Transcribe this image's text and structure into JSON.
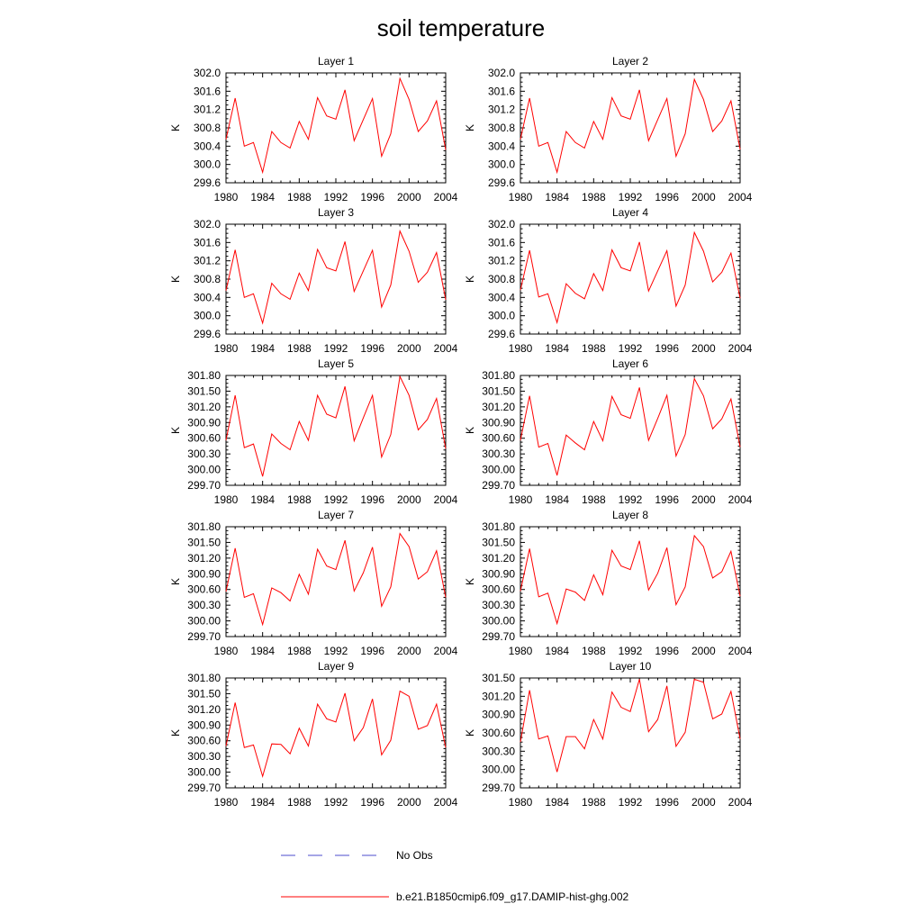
{
  "title": "soil temperature",
  "legend": {
    "position": "bottom",
    "entries": [
      {
        "label": "No Obs",
        "color": "#4d4dcc",
        "style": "dashed"
      },
      {
        "label": "b.e21.B1850cmip6.f09_g17.DAMIP-hist-ghg.002",
        "color": "#ff0000",
        "style": "solid"
      }
    ]
  },
  "chart_data": [
    {
      "type": "line",
      "title": "Layer 1",
      "ylabel": "K",
      "xlim": [
        1980,
        2004
      ],
      "ylim": [
        299.6,
        302.0
      ],
      "xticks": [
        "1980",
        "1984",
        "1988",
        "1992",
        "1996",
        "2000",
        "2004"
      ],
      "yticks": [
        "299.6",
        "300.0",
        "300.4",
        "300.8",
        "301.2",
        "301.6",
        "302.0"
      ],
      "x": [
        1980,
        1981,
        1982,
        1983,
        1984,
        1985,
        1986,
        1987,
        1988,
        1989,
        1990,
        1991,
        1992,
        1993,
        1994,
        1995,
        1996,
        1997,
        1998,
        1999,
        2000,
        2001,
        2002,
        2003,
        2004
      ],
      "series": [
        {
          "name": "b.e21.B1850cmip6.f09_g17.DAMIP-hist-ghg.002",
          "color": "#ff0000",
          "values": [
            300.55,
            301.45,
            300.4,
            300.48,
            299.83,
            300.72,
            300.48,
            300.36,
            300.94,
            300.55,
            301.46,
            301.06,
            300.99,
            301.63,
            300.52,
            300.98,
            301.44,
            300.18,
            300.67,
            301.88,
            301.42,
            300.72,
            300.95,
            301.39,
            300.32
          ]
        }
      ]
    },
    {
      "type": "line",
      "title": "Layer 2",
      "ylabel": "K",
      "xlim": [
        1980,
        2004
      ],
      "ylim": [
        299.6,
        302.0
      ],
      "xticks": [
        "1980",
        "1984",
        "1988",
        "1992",
        "1996",
        "2000",
        "2004"
      ],
      "yticks": [
        "299.6",
        "300.0",
        "300.4",
        "300.8",
        "301.2",
        "301.6",
        "302.0"
      ],
      "x": [
        1980,
        1981,
        1982,
        1983,
        1984,
        1985,
        1986,
        1987,
        1988,
        1989,
        1990,
        1991,
        1992,
        1993,
        1994,
        1995,
        1996,
        1997,
        1998,
        1999,
        2000,
        2001,
        2002,
        2003,
        2004
      ],
      "series": [
        {
          "name": "b.e21.B1850cmip6.f09_g17.DAMIP-hist-ghg.002",
          "color": "#ff0000",
          "values": [
            300.55,
            301.45,
            300.4,
            300.48,
            299.83,
            300.72,
            300.48,
            300.36,
            300.94,
            300.55,
            301.46,
            301.06,
            300.99,
            301.63,
            300.52,
            300.98,
            301.44,
            300.18,
            300.67,
            301.86,
            301.42,
            300.72,
            300.95,
            301.39,
            300.33
          ]
        }
      ]
    },
    {
      "type": "line",
      "title": "Layer 3",
      "ylabel": "K",
      "xlim": [
        1980,
        2004
      ],
      "ylim": [
        299.6,
        302.0
      ],
      "xticks": [
        "1980",
        "1984",
        "1988",
        "1992",
        "1996",
        "2000",
        "2004"
      ],
      "yticks": [
        "299.6",
        "300.0",
        "300.4",
        "300.8",
        "301.2",
        "301.6",
        "302.0"
      ],
      "x": [
        1980,
        1981,
        1982,
        1983,
        1984,
        1985,
        1986,
        1987,
        1988,
        1989,
        1990,
        1991,
        1992,
        1993,
        1994,
        1995,
        1996,
        1997,
        1998,
        1999,
        2000,
        2001,
        2002,
        2003,
        2004
      ],
      "series": [
        {
          "name": "b.e21.B1850cmip6.f09_g17.DAMIP-hist-ghg.002",
          "color": "#ff0000",
          "values": [
            300.55,
            301.44,
            300.4,
            300.48,
            299.84,
            300.71,
            300.48,
            300.36,
            300.93,
            300.55,
            301.45,
            301.05,
            300.98,
            301.62,
            300.53,
            300.98,
            301.43,
            300.19,
            300.67,
            301.85,
            301.41,
            300.73,
            300.95,
            301.38,
            300.35
          ]
        }
      ]
    },
    {
      "type": "line",
      "title": "Layer 4",
      "ylabel": "K",
      "xlim": [
        1980,
        2004
      ],
      "ylim": [
        299.6,
        302.0
      ],
      "xticks": [
        "1980",
        "1984",
        "1988",
        "1992",
        "1996",
        "2000",
        "2004"
      ],
      "yticks": [
        "299.6",
        "300.0",
        "300.4",
        "300.8",
        "301.2",
        "301.6",
        "302.0"
      ],
      "x": [
        1980,
        1981,
        1982,
        1983,
        1984,
        1985,
        1986,
        1987,
        1988,
        1989,
        1990,
        1991,
        1992,
        1993,
        1994,
        1995,
        1996,
        1997,
        1998,
        1999,
        2000,
        2001,
        2002,
        2003,
        2004
      ],
      "series": [
        {
          "name": "b.e21.B1850cmip6.f09_g17.DAMIP-hist-ghg.002",
          "color": "#ff0000",
          "values": [
            300.56,
            301.43,
            300.41,
            300.48,
            299.85,
            300.7,
            300.49,
            300.37,
            300.92,
            300.55,
            301.44,
            301.05,
            300.98,
            301.61,
            300.54,
            300.98,
            301.42,
            300.21,
            300.67,
            301.82,
            301.41,
            300.74,
            300.95,
            301.37,
            300.38
          ]
        }
      ]
    },
    {
      "type": "line",
      "title": "Layer 5",
      "ylabel": "K",
      "xlim": [
        1980,
        2004
      ],
      "ylim": [
        299.7,
        301.8
      ],
      "xticks": [
        "1980",
        "1984",
        "1988",
        "1992",
        "1996",
        "2000",
        "2004"
      ],
      "yticks": [
        "299.70",
        "300.00",
        "300.30",
        "300.60",
        "300.90",
        "301.20",
        "301.50",
        "301.80"
      ],
      "x": [
        1980,
        1981,
        1982,
        1983,
        1984,
        1985,
        1986,
        1987,
        1988,
        1989,
        1990,
        1991,
        1992,
        1993,
        1994,
        1995,
        1996,
        1997,
        1998,
        1999,
        2000,
        2001,
        2002,
        2003,
        2004
      ],
      "series": [
        {
          "name": "b.e21.B1850cmip6.f09_g17.DAMIP-hist-ghg.002",
          "color": "#ff0000",
          "values": [
            300.56,
            301.42,
            300.42,
            300.49,
            299.87,
            300.68,
            300.5,
            300.38,
            300.92,
            300.56,
            301.42,
            301.06,
            300.99,
            301.59,
            300.55,
            300.99,
            301.42,
            300.24,
            300.67,
            301.78,
            301.42,
            300.76,
            300.96,
            301.36,
            300.4
          ]
        }
      ]
    },
    {
      "type": "line",
      "title": "Layer 6",
      "ylabel": "K",
      "xlim": [
        1980,
        2004
      ],
      "ylim": [
        299.7,
        301.8
      ],
      "xticks": [
        "1980",
        "1984",
        "1988",
        "1992",
        "1996",
        "2000",
        "2004"
      ],
      "yticks": [
        "299.70",
        "300.00",
        "300.30",
        "300.60",
        "300.90",
        "301.20",
        "301.50",
        "301.80"
      ],
      "x": [
        1980,
        1981,
        1982,
        1983,
        1984,
        1985,
        1986,
        1987,
        1988,
        1989,
        1990,
        1991,
        1992,
        1993,
        1994,
        1995,
        1996,
        1997,
        1998,
        1999,
        2000,
        2001,
        2002,
        2003,
        2004
      ],
      "series": [
        {
          "name": "b.e21.B1850cmip6.f09_g17.DAMIP-hist-ghg.002",
          "color": "#ff0000",
          "values": [
            300.56,
            301.41,
            300.43,
            300.5,
            299.89,
            300.66,
            300.51,
            300.38,
            300.92,
            300.55,
            301.4,
            301.05,
            300.98,
            301.57,
            300.56,
            300.98,
            301.42,
            300.26,
            300.67,
            301.74,
            301.41,
            300.78,
            300.97,
            301.35,
            300.43
          ]
        }
      ]
    },
    {
      "type": "line",
      "title": "Layer 7",
      "ylabel": "K",
      "xlim": [
        1980,
        2004
      ],
      "ylim": [
        299.7,
        301.8
      ],
      "xticks": [
        "1980",
        "1984",
        "1988",
        "1992",
        "1996",
        "2000",
        "2004"
      ],
      "yticks": [
        "299.70",
        "300.00",
        "300.30",
        "300.60",
        "300.90",
        "301.20",
        "301.50",
        "301.80"
      ],
      "x": [
        1980,
        1981,
        1982,
        1983,
        1984,
        1985,
        1986,
        1987,
        1988,
        1989,
        1990,
        1991,
        1992,
        1993,
        1994,
        1995,
        1996,
        1997,
        1998,
        1999,
        2000,
        2001,
        2002,
        2003,
        2004
      ],
      "series": [
        {
          "name": "b.e21.B1850cmip6.f09_g17.DAMIP-hist-ghg.002",
          "color": "#ff0000",
          "values": [
            300.56,
            301.39,
            300.45,
            300.52,
            299.93,
            300.63,
            300.54,
            300.38,
            300.89,
            300.51,
            301.37,
            301.05,
            300.98,
            301.54,
            300.57,
            300.92,
            301.41,
            300.28,
            300.65,
            301.67,
            301.42,
            300.8,
            300.94,
            301.34,
            300.45
          ]
        }
      ]
    },
    {
      "type": "line",
      "title": "Layer 8",
      "ylabel": "K",
      "xlim": [
        1980,
        2004
      ],
      "ylim": [
        299.7,
        301.8
      ],
      "xticks": [
        "1980",
        "1984",
        "1988",
        "1992",
        "1996",
        "2000",
        "2004"
      ],
      "yticks": [
        "299.70",
        "300.00",
        "300.30",
        "300.60",
        "300.90",
        "301.20",
        "301.50",
        "301.80"
      ],
      "x": [
        1980,
        1981,
        1982,
        1983,
        1984,
        1985,
        1986,
        1987,
        1988,
        1989,
        1990,
        1991,
        1992,
        1993,
        1994,
        1995,
        1996,
        1997,
        1998,
        1999,
        2000,
        2001,
        2002,
        2003,
        2004
      ],
      "series": [
        {
          "name": "b.e21.B1850cmip6.f09_g17.DAMIP-hist-ghg.002",
          "color": "#ff0000",
          "values": [
            300.57,
            301.38,
            300.46,
            300.53,
            299.95,
            300.61,
            300.55,
            300.39,
            300.88,
            300.5,
            301.35,
            301.05,
            300.98,
            301.53,
            300.59,
            300.91,
            301.4,
            300.31,
            300.65,
            301.63,
            301.42,
            300.82,
            300.94,
            301.33,
            300.47
          ]
        }
      ]
    },
    {
      "type": "line",
      "title": "Layer 9",
      "ylabel": "K",
      "xlim": [
        1980,
        2004
      ],
      "ylim": [
        299.7,
        301.8
      ],
      "xticks": [
        "1980",
        "1984",
        "1988",
        "1992",
        "1996",
        "2000",
        "2004"
      ],
      "yticks": [
        "299.70",
        "300.00",
        "300.30",
        "300.60",
        "300.90",
        "301.20",
        "301.50",
        "301.80"
      ],
      "x": [
        1980,
        1981,
        1982,
        1983,
        1984,
        1985,
        1986,
        1987,
        1988,
        1989,
        1990,
        1991,
        1992,
        1993,
        1994,
        1995,
        1996,
        1997,
        1998,
        1999,
        2000,
        2001,
        2002,
        2003,
        2004
      ],
      "series": [
        {
          "name": "b.e21.B1850cmip6.f09_g17.DAMIP-hist-ghg.002",
          "color": "#ff0000",
          "values": [
            300.5,
            301.33,
            300.47,
            300.52,
            299.92,
            300.54,
            300.53,
            300.35,
            300.84,
            300.5,
            301.3,
            301.02,
            300.96,
            301.51,
            300.6,
            300.85,
            301.4,
            300.33,
            300.61,
            301.55,
            301.45,
            300.82,
            300.89,
            301.3,
            300.47
          ]
        }
      ]
    },
    {
      "type": "line",
      "title": "Layer 10",
      "ylabel": "K",
      "xlim": [
        1980,
        2004
      ],
      "ylim": [
        299.7,
        301.5
      ],
      "xticks": [
        "1980",
        "1984",
        "1988",
        "1992",
        "1996",
        "2000",
        "2004"
      ],
      "yticks": [
        "299.70",
        "300.00",
        "300.30",
        "300.60",
        "300.90",
        "301.20",
        "301.50"
      ],
      "x": [
        1980,
        1981,
        1982,
        1983,
        1984,
        1985,
        1986,
        1987,
        1988,
        1989,
        1990,
        1991,
        1992,
        1993,
        1994,
        1995,
        1996,
        1997,
        1998,
        1999,
        2000,
        2001,
        2002,
        2003,
        2004
      ],
      "series": [
        {
          "name": "b.e21.B1850cmip6.f09_g17.DAMIP-hist-ghg.002",
          "color": "#ff0000",
          "values": [
            300.45,
            301.3,
            300.5,
            300.55,
            299.96,
            300.54,
            300.54,
            300.34,
            300.82,
            300.5,
            301.27,
            301.02,
            300.95,
            301.48,
            300.62,
            300.82,
            301.37,
            300.38,
            300.61,
            301.48,
            301.43,
            300.83,
            300.91,
            301.28,
            300.5
          ]
        }
      ]
    }
  ]
}
